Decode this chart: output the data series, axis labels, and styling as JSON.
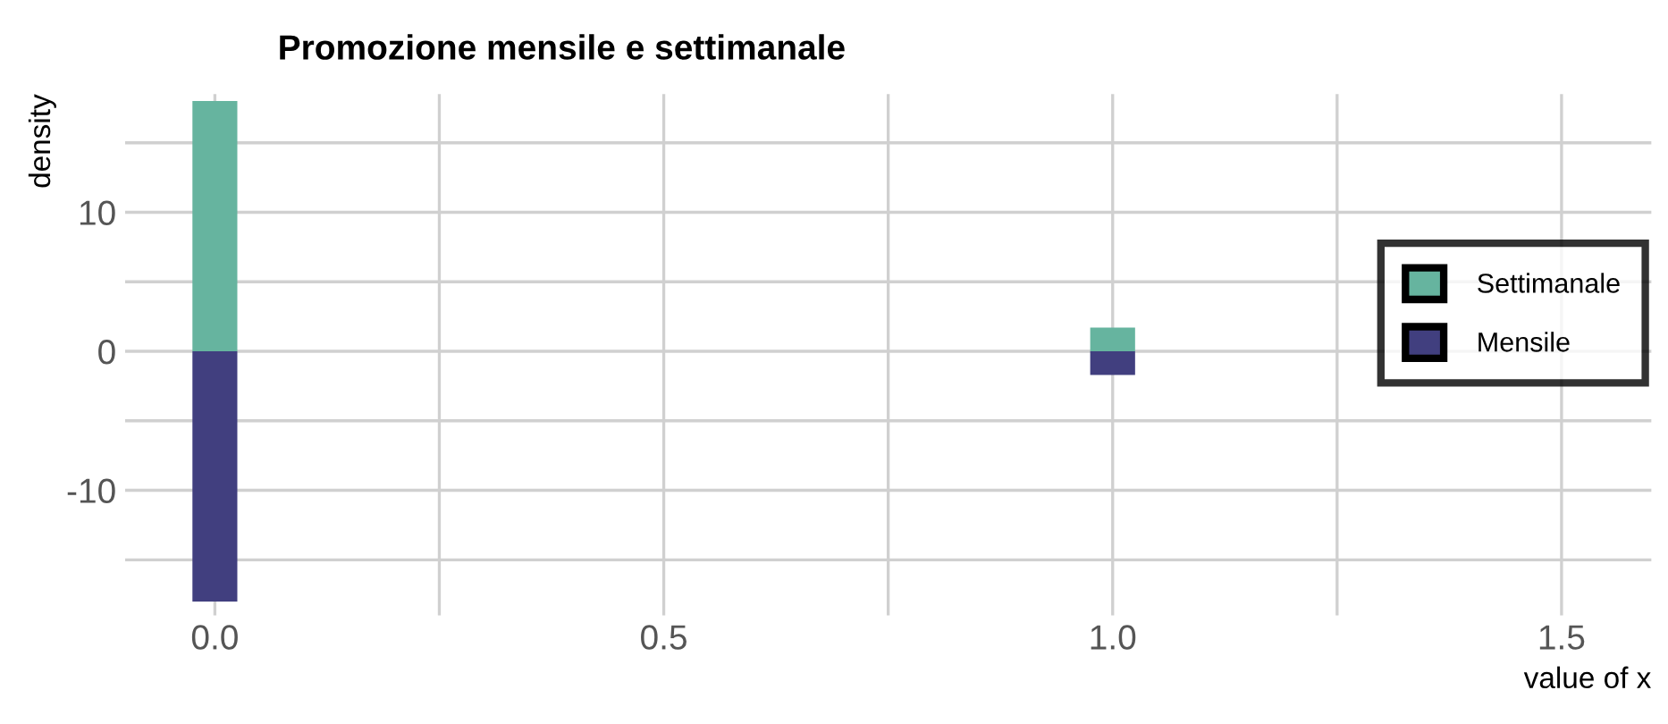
{
  "chart_data": {
    "type": "bar",
    "title": "Promozione mensile e settimanale",
    "xlabel": "value of x",
    "ylabel": "density",
    "x": [
      0,
      1
    ],
    "series": [
      {
        "name": "Settimanale",
        "color": "#66b49f",
        "values": [
          18,
          1.7
        ]
      },
      {
        "name": "Mensile",
        "color": "#413f7f",
        "values": [
          -18,
          -1.7
        ]
      }
    ],
    "xlim": [
      -0.1,
      1.6
    ],
    "ylim": [
      -19,
      18.5
    ],
    "xticks": [
      {
        "value": 0,
        "label": "0.0"
      },
      {
        "value": 0.25,
        "label": null
      },
      {
        "value": 0.5,
        "label": "0.5"
      },
      {
        "value": 0.75,
        "label": null
      },
      {
        "value": 1,
        "label": "1.0"
      },
      {
        "value": 1.25,
        "label": null
      },
      {
        "value": 1.5,
        "label": "1.5"
      }
    ],
    "yticks": [
      {
        "value": -15,
        "label": null
      },
      -10,
      {
        "value": -5,
        "label": null
      },
      0,
      {
        "value": 5,
        "label": null
      },
      10,
      {
        "value": 15,
        "label": null
      }
    ],
    "grid": true,
    "legend": "right",
    "stacked": true
  }
}
